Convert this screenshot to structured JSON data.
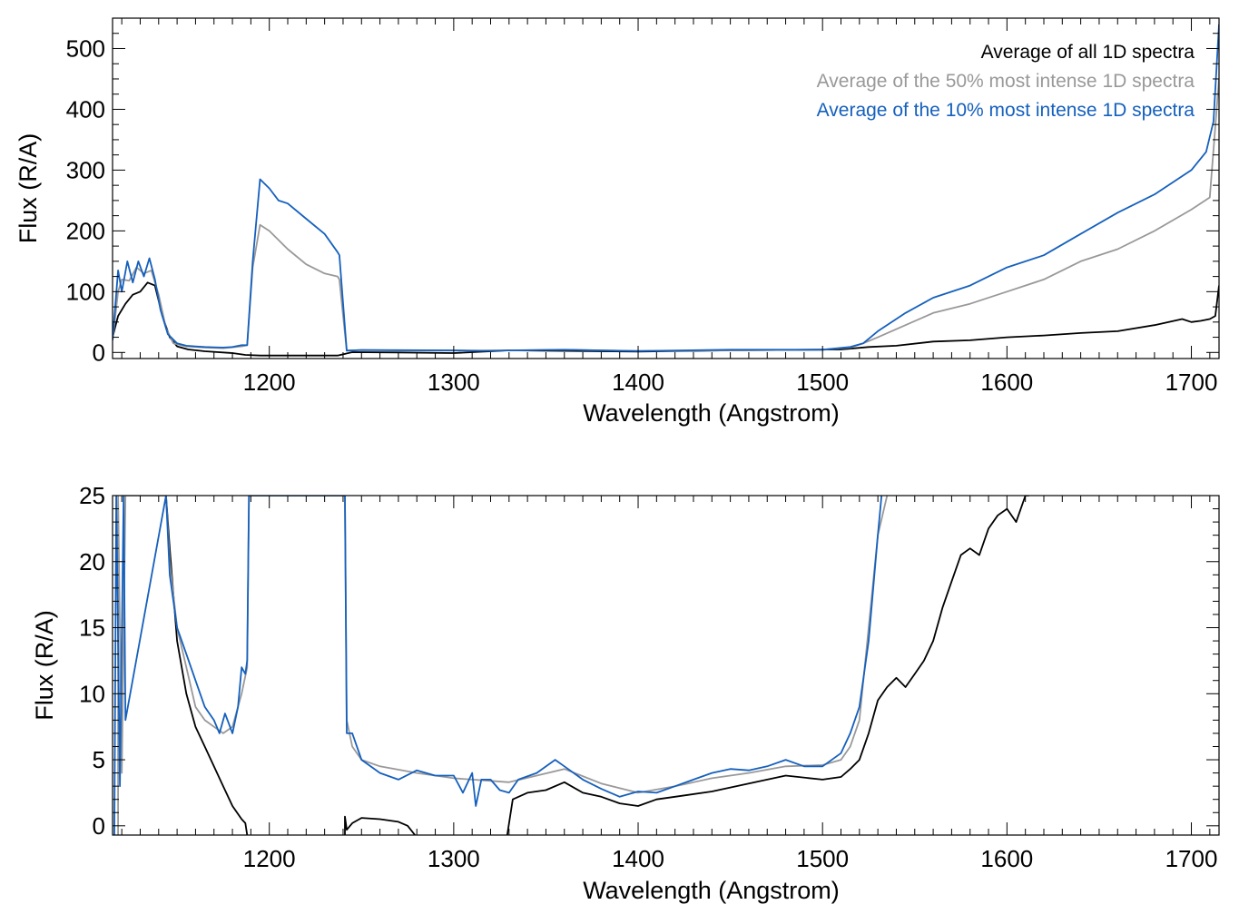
{
  "colors": {
    "all": "#000000",
    "top50": "#999999",
    "top10": "#1560bd"
  },
  "legend": {
    "all": "Average of all 1D spectra",
    "top50": "Average of the 50% most intense 1D spectra",
    "top10": "Average of the 10% most intense 1D spectra"
  },
  "chart_data": [
    {
      "type": "line",
      "xlabel": "Wavelength (Angstrom)",
      "ylabel": "Flux (R/A)",
      "xlim": [
        1115,
        1715
      ],
      "ylim": [
        -10,
        550
      ],
      "xticks": [
        "1200",
        "1300",
        "1400",
        "1500",
        "1600",
        "1700"
      ],
      "yticks": [
        "0",
        "100",
        "200",
        "300",
        "400",
        "500"
      ],
      "legend_position": "top-right",
      "series": [
        {
          "name": "Average of all 1D spectra",
          "color": "#000000",
          "x": [
            1115,
            1118,
            1122,
            1126,
            1130,
            1134,
            1138,
            1142,
            1146,
            1150,
            1156,
            1165,
            1180,
            1187,
            1195,
            1215,
            1237,
            1245,
            1270,
            1300,
            1330,
            1400,
            1450,
            1510,
            1525,
            1540,
            1560,
            1580,
            1600,
            1620,
            1640,
            1660,
            1680,
            1695,
            1700,
            1705,
            1710,
            1713,
            1715
          ],
          "y": [
            25,
            60,
            80,
            95,
            100,
            115,
            110,
            60,
            25,
            10,
            5,
            2,
            -1,
            -4,
            -5,
            -5,
            -5,
            0.5,
            0,
            -1,
            3.5,
            1.5,
            3.5,
            5,
            9,
            11,
            18,
            20,
            25,
            28,
            32,
            35,
            45,
            55,
            50,
            52,
            55,
            60,
            110
          ]
        },
        {
          "name": "Average of the 50% most intense 1D spectra",
          "color": "#999999",
          "x": [
            1115,
            1118,
            1120,
            1124,
            1128,
            1132,
            1136,
            1140,
            1144,
            1148,
            1155,
            1165,
            1175,
            1185,
            1188,
            1191,
            1195,
            1200,
            1210,
            1220,
            1230,
            1237,
            1238,
            1240,
            1242,
            1250,
            1270,
            1300,
            1330,
            1360,
            1400,
            1450,
            1500,
            1515,
            1522,
            1530,
            1545,
            1560,
            1580,
            1600,
            1620,
            1640,
            1660,
            1680,
            1700,
            1710,
            1715
          ],
          "y": [
            20,
            100,
            120,
            118,
            140,
            130,
            135,
            95,
            40,
            15,
            10,
            8,
            7,
            10,
            12,
            140,
            210,
            200,
            170,
            145,
            130,
            125,
            120,
            60,
            3,
            4,
            3.5,
            3.2,
            3.3,
            4.4,
            2.5,
            3.5,
            4.5,
            8,
            15,
            25,
            45,
            65,
            80,
            100,
            120,
            150,
            170,
            200,
            235,
            255,
            450
          ]
        },
        {
          "name": "Average of the 10% most intense 1D spectra",
          "color": "#1560bd",
          "x": [
            1115,
            1118,
            1120,
            1123,
            1126,
            1129,
            1132,
            1135,
            1138,
            1141,
            1145,
            1150,
            1155,
            1160,
            1165,
            1170,
            1175,
            1180,
            1185,
            1188,
            1191,
            1195,
            1200,
            1205,
            1210,
            1220,
            1230,
            1237,
            1238,
            1240,
            1242,
            1250,
            1270,
            1300,
            1315,
            1330,
            1360,
            1400,
            1450,
            1500,
            1515,
            1522,
            1530,
            1545,
            1560,
            1580,
            1600,
            1620,
            1640,
            1660,
            1680,
            1700,
            1708,
            1712,
            1715
          ],
          "y": [
            20,
            135,
            100,
            150,
            115,
            150,
            125,
            155,
            120,
            70,
            30,
            15,
            11,
            10,
            9,
            8.5,
            8,
            9,
            12,
            12,
            150,
            285,
            270,
            250,
            245,
            220,
            195,
            165,
            160,
            80,
            3,
            4,
            3.8,
            3.5,
            2.5,
            3.5,
            4.5,
            2.3,
            4.5,
            4.5,
            9,
            15,
            35,
            65,
            90,
            110,
            140,
            160,
            195,
            230,
            260,
            300,
            330,
            380,
            540
          ]
        }
      ]
    },
    {
      "type": "line",
      "xlabel": "Wavelength (Angstrom)",
      "ylabel": "Flux (R/A)",
      "xlim": [
        1115,
        1715
      ],
      "ylim": [
        -0.7,
        25
      ],
      "xticks": [
        "1200",
        "1300",
        "1400",
        "1500",
        "1600",
        "1700"
      ],
      "yticks": [
        "0",
        "5",
        "10",
        "15",
        "20",
        "25"
      ],
      "series": [
        {
          "name": "Average of all 1D spectra",
          "color": "#000000",
          "x": [
            1144,
            1146,
            1150,
            1155,
            1160,
            1165,
            1170,
            1175,
            1180,
            1185,
            1187,
            1188
          ],
          "y": [
            25,
            21,
            14,
            10,
            7.5,
            6,
            4.5,
            3,
            1.5,
            0.5,
            0.2,
            -0.7
          ]
        },
        {
          "name": "Average of all 1D spectra",
          "color": "#000000",
          "x": [
            1241,
            1241,
            1242,
            1245,
            1250,
            1260,
            1270,
            1275,
            1279
          ],
          "y": [
            -0.7,
            0.7,
            -0.3,
            0.2,
            0.6,
            0.5,
            0.3,
            0,
            -0.7
          ]
        },
        {
          "name": "Average of all 1D spectra",
          "color": "#000000",
          "x": [
            1329,
            1332,
            1340,
            1350,
            1360,
            1370,
            1380,
            1390,
            1400,
            1410,
            1420,
            1440,
            1460,
            1480,
            1500,
            1510,
            1515,
            1520,
            1525,
            1530,
            1535,
            1540,
            1545,
            1550,
            1555,
            1560,
            1565,
            1570,
            1575,
            1580,
            1585,
            1590,
            1595,
            1600,
            1605,
            1610,
            1612
          ],
          "y": [
            -0.7,
            2,
            2.5,
            2.7,
            3.3,
            2.5,
            2.2,
            1.7,
            1.5,
            2,
            2.2,
            2.6,
            3.2,
            3.8,
            3.5,
            3.7,
            4.3,
            5,
            7,
            9.5,
            10.5,
            11.2,
            10.5,
            11.5,
            12.5,
            14,
            16.5,
            18.5,
            20.5,
            21,
            20.5,
            22.5,
            23.5,
            24,
            23,
            25,
            25
          ]
        },
        {
          "name": "Average of the 50% most intense 1D spectra",
          "color": "#999999",
          "x": [
            1118,
            1118,
            1120,
            1122,
            1144,
            1146,
            1150,
            1155,
            1160,
            1165,
            1170,
            1175,
            1180,
            1185,
            1188,
            1189,
            1241,
            1242,
            1245,
            1250,
            1260,
            1280,
            1300,
            1320,
            1330,
            1345,
            1360,
            1380,
            1400,
            1420,
            1440,
            1460,
            1480,
            1500,
            1510,
            1515,
            1520,
            1525,
            1530,
            1535
          ],
          "y": [
            -0.7,
            25,
            4,
            25,
            25,
            20,
            15,
            12,
            9,
            8,
            7.5,
            7,
            7.5,
            10,
            12,
            25,
            25,
            8,
            6,
            5,
            4.5,
            4,
            3.6,
            3.4,
            3.3,
            3.8,
            4.3,
            3.2,
            2.5,
            3,
            3.6,
            4,
            4.5,
            4.6,
            5,
            6,
            8,
            15,
            22,
            25
          ]
        },
        {
          "name": "Average of the 10% most intense 1D spectra",
          "color": "#1560bd",
          "x": [
            1116,
            1117,
            1119,
            1121,
            1122,
            1144,
            1146,
            1150,
            1155,
            1160,
            1165,
            1170,
            1173,
            1176,
            1180,
            1183,
            1185,
            1187,
            1188,
            1189,
            1241,
            1242,
            1245,
            1250,
            1260,
            1270,
            1280,
            1290,
            1300,
            1305,
            1310,
            1312,
            1315,
            1320,
            1325,
            1330,
            1335,
            1345,
            1355,
            1360,
            1370,
            1380,
            1390,
            1400,
            1410,
            1420,
            1430,
            1440,
            1450,
            1460,
            1470,
            1480,
            1490,
            1500,
            1510,
            1515,
            1520,
            1525,
            1530,
            1532
          ],
          "y": [
            -0.7,
            25,
            3,
            25,
            8,
            25,
            19,
            15,
            13,
            11,
            9,
            8,
            7,
            8.5,
            7,
            9,
            12,
            11.5,
            12.5,
            25,
            25,
            7,
            7,
            5,
            4,
            3.5,
            4.2,
            3.8,
            3.8,
            2.5,
            4,
            1.5,
            3.5,
            3.5,
            2.7,
            2.5,
            3.5,
            4,
            5,
            4.5,
            3.5,
            2.8,
            2.2,
            2.6,
            2.5,
            3,
            3.5,
            4,
            4.3,
            4.2,
            4.5,
            5,
            4.5,
            4.5,
            5.5,
            7,
            9,
            14,
            22,
            25
          ]
        }
      ]
    }
  ]
}
